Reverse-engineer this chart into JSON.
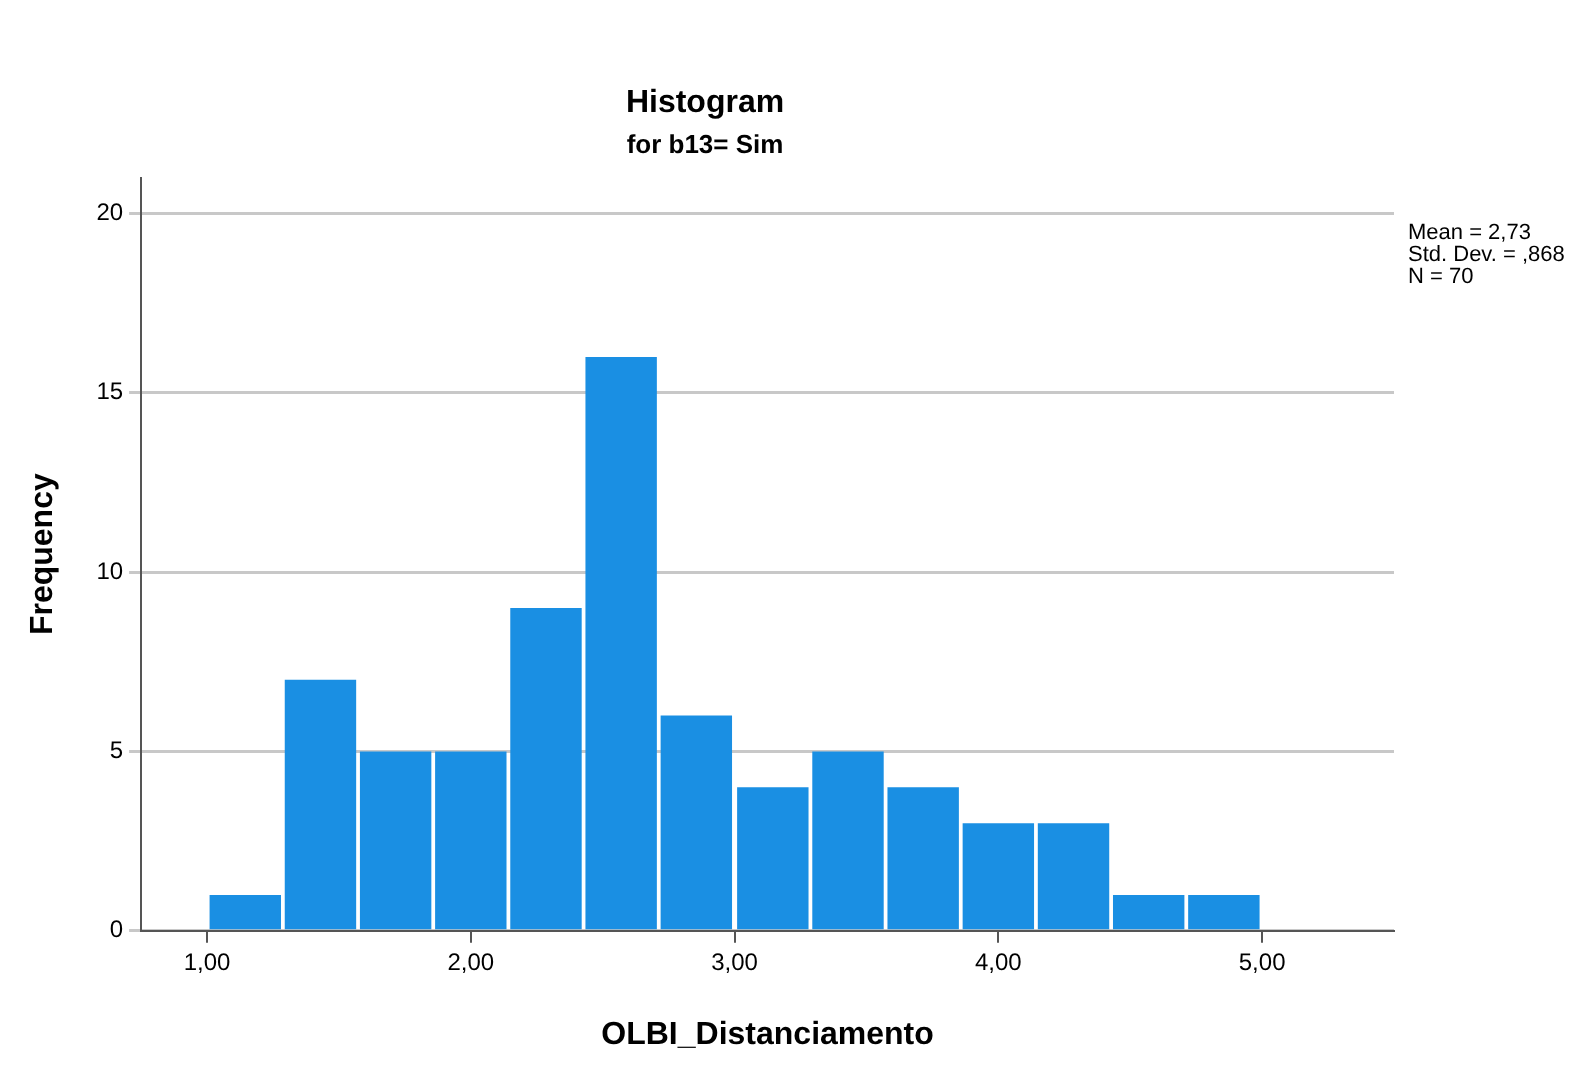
{
  "chart_data": {
    "type": "histogram",
    "title": "Histogram",
    "subtitle": "for b13= Sim",
    "xlabel": "OLBI_Distanciamento",
    "ylabel": "Frequency",
    "bins": [
      1,
      1.29,
      1.57,
      1.86,
      2.14,
      2.43,
      2.71,
      3,
      3.29,
      3.57,
      3.86,
      4.14,
      4.43,
      4.71,
      5
    ],
    "values": [
      1,
      7,
      5,
      5,
      9,
      16,
      6,
      4,
      5,
      4,
      3,
      3,
      1,
      1
    ],
    "color": "#1a8fe3",
    "xlim": [
      0.75,
      5.5
    ],
    "xticks": [
      {
        "value": 1,
        "label": "1,00"
      },
      {
        "value": 2,
        "label": "2,00"
      },
      {
        "value": 3,
        "label": "3,00"
      },
      {
        "value": 4,
        "label": "4,00"
      },
      {
        "value": 5,
        "label": "5,00"
      }
    ],
    "ylim": [
      0,
      21
    ],
    "yticks": [
      0,
      5,
      10,
      15,
      20
    ],
    "grid": "y",
    "legend": false,
    "annotations": [
      "Mean = 2,73",
      "Std. Dev. = ,868",
      "N = 70"
    ]
  }
}
